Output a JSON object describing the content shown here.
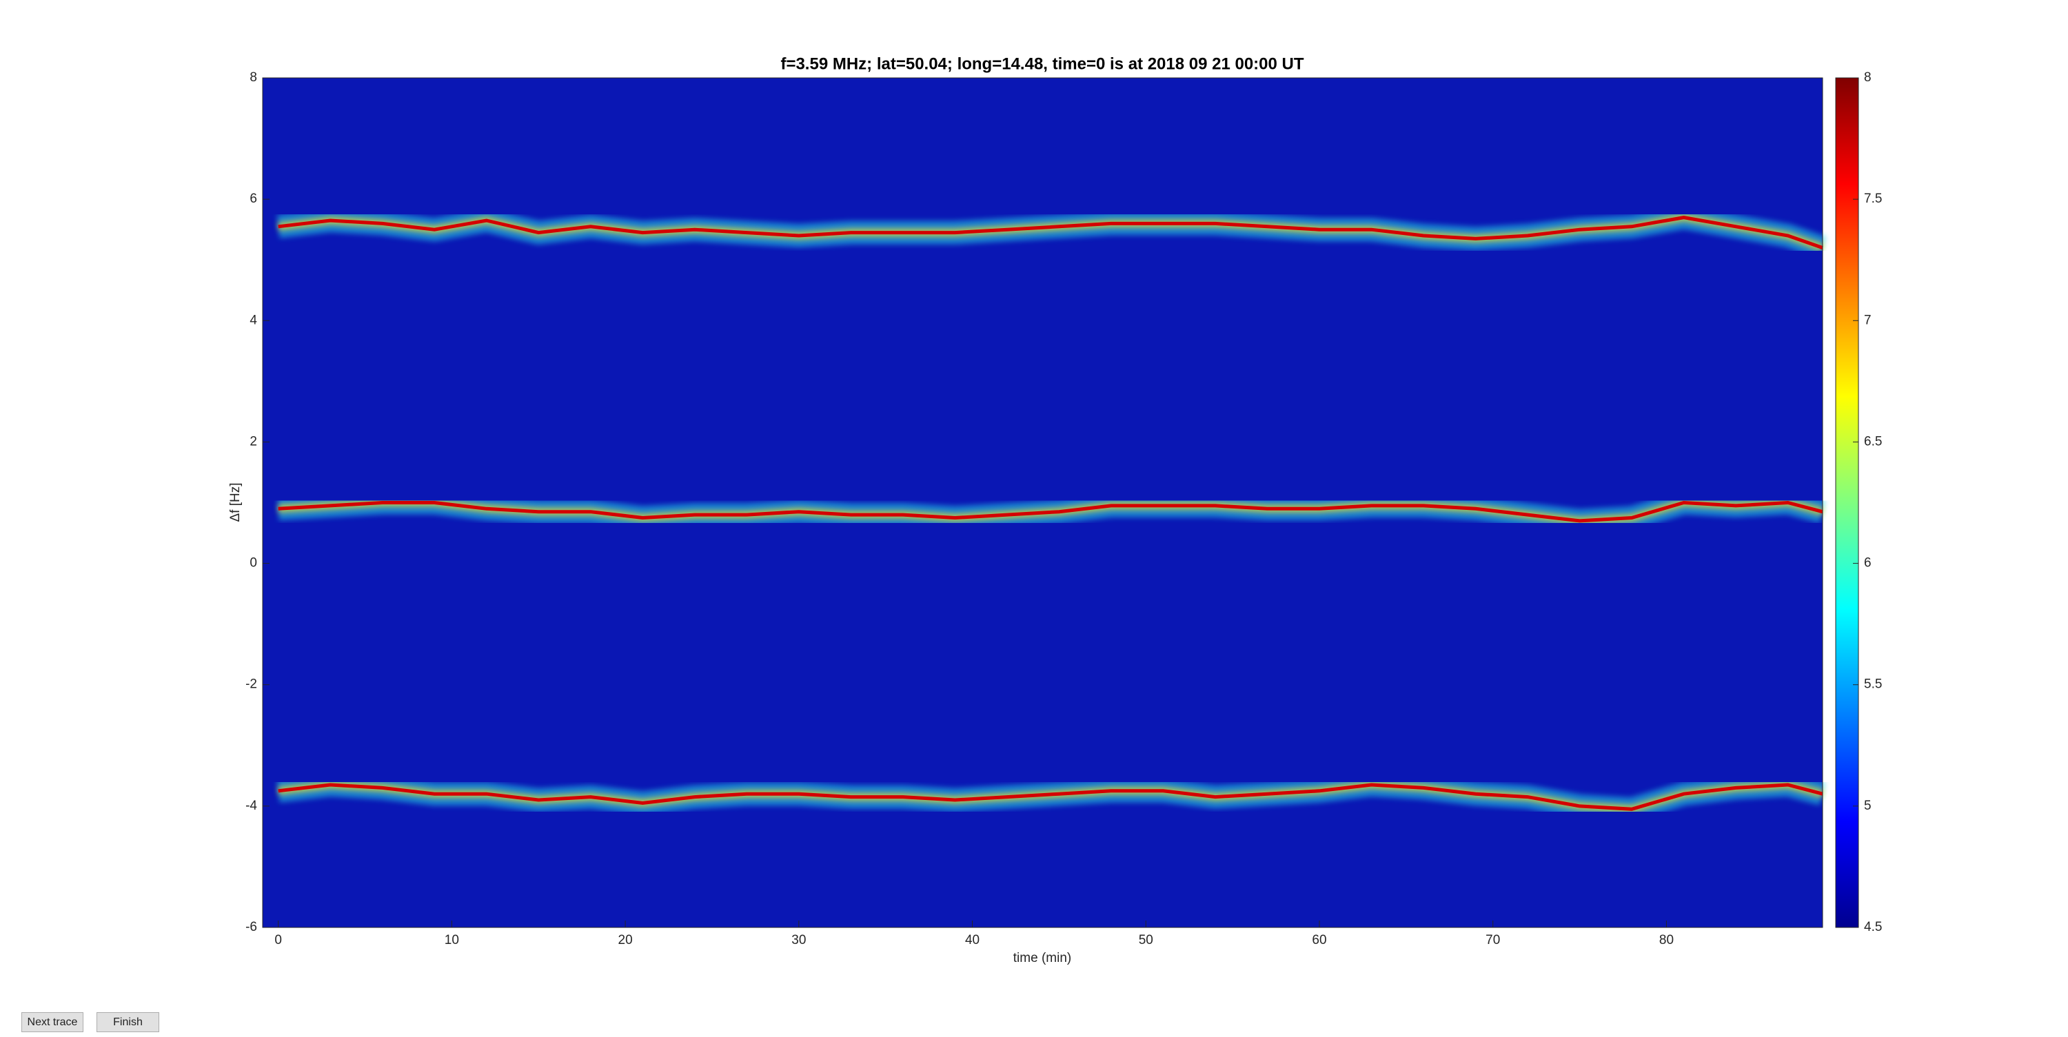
{
  "chart_data": {
    "type": "spectrogram",
    "title": "f=3.59 MHz;  lat=50.04; long=14.48, time=0 is at 2018 09 21 00:00 UT",
    "xlabel": "time (min)",
    "ylabel": "Δf [Hz]",
    "x": [
      0,
      3,
      6,
      9,
      12,
      15,
      18,
      21,
      24,
      27,
      30,
      33,
      36,
      39,
      42,
      45,
      48,
      51,
      54,
      57,
      60,
      63,
      66,
      69,
      72,
      75,
      78,
      81,
      84,
      87,
      89
    ],
    "series": [
      {
        "color": "#d40000",
        "values": [
          5.55,
          5.65,
          5.6,
          5.5,
          5.65,
          5.45,
          5.55,
          5.45,
          5.5,
          5.45,
          5.4,
          5.45,
          5.45,
          5.45,
          5.5,
          5.55,
          5.6,
          5.6,
          5.6,
          5.55,
          5.5,
          5.5,
          5.4,
          5.35,
          5.4,
          5.5,
          5.55,
          5.7,
          5.55,
          5.4,
          5.2
        ]
      },
      {
        "color": "#d40000",
        "values": [
          0.9,
          0.95,
          1.0,
          1.0,
          0.9,
          0.85,
          0.85,
          0.75,
          0.8,
          0.8,
          0.85,
          0.8,
          0.8,
          0.75,
          0.8,
          0.85,
          0.95,
          0.95,
          0.95,
          0.9,
          0.9,
          0.95,
          0.95,
          0.9,
          0.8,
          0.7,
          0.75,
          1.0,
          0.95,
          1.0,
          0.85
        ]
      },
      {
        "color": "#d40000",
        "values": [
          -3.75,
          -3.65,
          -3.7,
          -3.8,
          -3.8,
          -3.9,
          -3.85,
          -3.95,
          -3.85,
          -3.8,
          -3.8,
          -3.85,
          -3.85,
          -3.9,
          -3.85,
          -3.8,
          -3.75,
          -3.75,
          -3.85,
          -3.8,
          -3.75,
          -3.65,
          -3.7,
          -3.8,
          -3.85,
          -4.0,
          -4.05,
          -3.8,
          -3.7,
          -3.65,
          -3.8
        ]
      }
    ],
    "xlim": [
      -0.9,
      89
    ],
    "xticks": [
      0,
      10,
      20,
      30,
      40,
      50,
      60,
      70,
      80
    ],
    "ylim": [
      -6,
      8
    ],
    "yticks": [
      -6,
      -4,
      -2,
      0,
      2,
      4,
      6,
      8
    ],
    "clim": [
      4.5,
      8
    ],
    "cticks": [
      4.5,
      5,
      5.5,
      6,
      6.5,
      7,
      7.5,
      8
    ]
  },
  "buttons": [
    "Next trace",
    "Finish"
  ]
}
